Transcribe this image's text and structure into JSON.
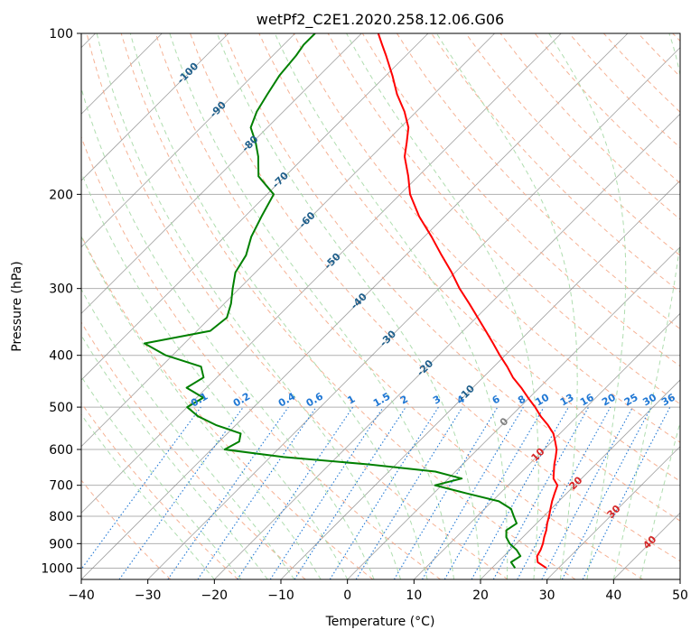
{
  "chart_data": {
    "type": "line",
    "title": "wetPf2_C2E1.2020.258.12.06.G06",
    "xlabel": "Temperature (°C)",
    "ylabel": "Pressure (hPa)",
    "xlim": [
      -40,
      50
    ],
    "ylim": [
      1050,
      100
    ],
    "y_scale": "log",
    "grid": true,
    "x_ticks": [
      "−40",
      "−30",
      "−20",
      "−10",
      "0",
      "10",
      "20",
      "30",
      "40",
      "50"
    ],
    "y_ticks": [
      "100",
      "200",
      "300",
      "400",
      "500",
      "600",
      "700",
      "800",
      "900",
      "1000"
    ],
    "skew": 45,
    "colors": {
      "temperature": "#ff0000",
      "dewpoint": "#008000",
      "dry_adiabat": "#f4a582",
      "moist_adiabat": "#a6d9a6",
      "mixing_ratio": "#1f77d4",
      "isotherm": "#808080",
      "isotherm_label": "#1f5f8b",
      "warm_label": "#d62728"
    },
    "series": [
      {
        "p": [
          1000,
          975,
          950,
          925,
          900,
          875,
          850,
          825,
          800,
          775,
          750,
          725,
          700,
          680,
          660,
          640,
          620,
          600,
          580,
          560,
          540,
          520,
          500,
          480,
          460,
          440,
          420,
          400,
          380,
          360,
          340,
          320,
          300,
          280,
          260,
          240,
          220,
          200,
          185,
          170,
          160,
          150,
          140,
          130,
          120,
          110,
          105,
          100
        ],
        "t": [
          28.2,
          26.0,
          25.0,
          24.6,
          24.0,
          23.2,
          22.5,
          21.6,
          20.8,
          19.9,
          19.0,
          18.2,
          17.4,
          15.8,
          14.8,
          13.8,
          12.9,
          11.9,
          10.5,
          9.0,
          6.9,
          4.5,
          2.3,
          -0.2,
          -2.7,
          -5.5,
          -8.0,
          -10.8,
          -13.6,
          -16.6,
          -19.8,
          -23.2,
          -26.9,
          -30.5,
          -34.6,
          -38.9,
          -43.8,
          -48.5,
          -51.5,
          -55.0,
          -56.8,
          -58.8,
          -61.8,
          -65.5,
          -69.0,
          -73.0,
          -75.2,
          -77.5
        ],
        "td": [
          23.5,
          22.0,
          22.5,
          21.0,
          19.0,
          17.5,
          16.5,
          17.0,
          15.5,
          14.0,
          11.0,
          5.0,
          -1.0,
          2.0,
          -3.0,
          -14.0,
          -28.0,
          -38.0,
          -37.0,
          -38.0,
          -43.0,
          -47.0,
          -50.0,
          -49.0,
          -53.0,
          -52.0,
          -54.0,
          -61.0,
          -66.0,
          -58.0,
          -57.5,
          -59.0,
          -61.0,
          -63.0,
          -64.0,
          -66.0,
          -67.5,
          -69.0,
          -74.0,
          -77.0,
          -79.5,
          -82.5,
          -84.0,
          -85.0,
          -86.0,
          -86.5,
          -87.0,
          -87.0
        ]
      }
    ],
    "isotherm_labels": [
      "-100",
      "-90",
      "-80",
      "-70",
      "-60",
      "-50",
      "-40",
      "-30",
      "-20",
      "-10",
      "0",
      "10",
      "20",
      "30",
      "40"
    ],
    "mixing_ratio_labels": [
      "0.1",
      "0.2",
      "0.4",
      "0.6",
      "1",
      "1.5",
      "2",
      "3",
      "4",
      "6",
      "8",
      "10",
      "13",
      "16",
      "20",
      "25",
      "30",
      "36"
    ]
  }
}
